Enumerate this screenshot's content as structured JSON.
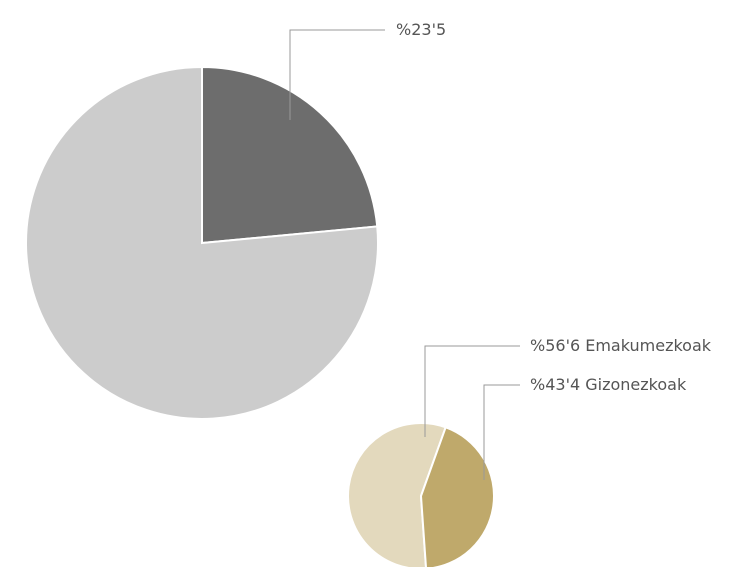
{
  "chart_data": [
    {
      "type": "pie",
      "categories": [
        null,
        null
      ],
      "values": [
        23.5,
        76.5
      ],
      "value_labels": [
        "%23'5",
        null
      ],
      "colors": [
        "#6d6d6d",
        "#cccccc"
      ],
      "start_angle": 0
    },
    {
      "type": "pie",
      "categories": [
        "Emakumezkoak",
        "Gizonezkoak"
      ],
      "values": [
        56.6,
        43.4
      ],
      "value_labels": [
        "%56'6",
        "%43'4"
      ],
      "colors": [
        "#e3d9bd",
        "#bfa96b"
      ],
      "start_angle": 176
    }
  ]
}
